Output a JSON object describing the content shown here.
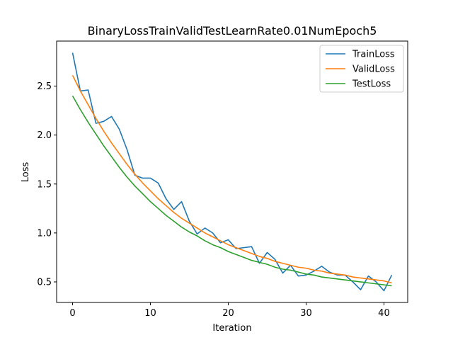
{
  "chart_data": {
    "type": "line",
    "title": "BinaryLossTrainValidTestLearnRate0.01NumEpoch5",
    "xlabel": "Iteration",
    "ylabel": "Loss",
    "xlim": [
      -2.05,
      43.05
    ],
    "ylim": [
      0.29,
      2.96
    ],
    "xticks": [
      0,
      10,
      20,
      30,
      40
    ],
    "yticks": [
      0.5,
      1.0,
      1.5,
      2.0,
      2.5
    ],
    "xtick_labels": [
      "0",
      "10",
      "20",
      "30",
      "40"
    ],
    "ytick_labels": [
      "0.5",
      "1.0",
      "1.5",
      "2.0",
      "2.5"
    ],
    "grid": false,
    "legend_position": "top-right",
    "x": [
      0,
      1,
      2,
      3,
      4,
      5,
      6,
      7,
      8,
      9,
      10,
      11,
      12,
      13,
      14,
      15,
      16,
      17,
      18,
      19,
      20,
      21,
      22,
      23,
      24,
      25,
      26,
      27,
      28,
      29,
      30,
      31,
      32,
      33,
      34,
      35,
      36,
      37,
      38,
      39,
      40,
      41
    ],
    "series": [
      {
        "name": "TrainLoss",
        "color": "#1f77b4",
        "values": [
          2.84,
          2.45,
          2.46,
          2.12,
          2.14,
          2.19,
          2.06,
          1.85,
          1.59,
          1.56,
          1.56,
          1.51,
          1.35,
          1.24,
          1.32,
          1.12,
          0.99,
          1.05,
          1.0,
          0.9,
          0.93,
          0.84,
          0.85,
          0.86,
          0.69,
          0.8,
          0.73,
          0.59,
          0.67,
          0.56,
          0.57,
          0.61,
          0.66,
          0.6,
          0.57,
          0.57,
          0.5,
          0.42,
          0.56,
          0.5,
          0.41,
          0.57
        ]
      },
      {
        "name": "ValidLoss",
        "color": "#ff7f0e",
        "values": [
          2.61,
          2.45,
          2.31,
          2.17,
          2.04,
          1.92,
          1.81,
          1.7,
          1.6,
          1.51,
          1.43,
          1.35,
          1.28,
          1.21,
          1.15,
          1.1,
          1.05,
          1.0,
          0.96,
          0.92,
          0.88,
          0.85,
          0.82,
          0.79,
          0.76,
          0.74,
          0.71,
          0.69,
          0.67,
          0.65,
          0.64,
          0.62,
          0.61,
          0.59,
          0.58,
          0.57,
          0.55,
          0.54,
          0.53,
          0.52,
          0.51,
          0.49
        ]
      },
      {
        "name": "TestLoss",
        "color": "#2ca02c",
        "values": [
          2.4,
          2.26,
          2.13,
          2.01,
          1.89,
          1.78,
          1.67,
          1.57,
          1.48,
          1.4,
          1.32,
          1.25,
          1.18,
          1.12,
          1.06,
          1.01,
          0.97,
          0.92,
          0.88,
          0.85,
          0.81,
          0.78,
          0.75,
          0.72,
          0.7,
          0.68,
          0.65,
          0.63,
          0.62,
          0.6,
          0.58,
          0.57,
          0.55,
          0.54,
          0.53,
          0.52,
          0.51,
          0.5,
          0.49,
          0.48,
          0.47,
          0.46
        ]
      }
    ]
  }
}
